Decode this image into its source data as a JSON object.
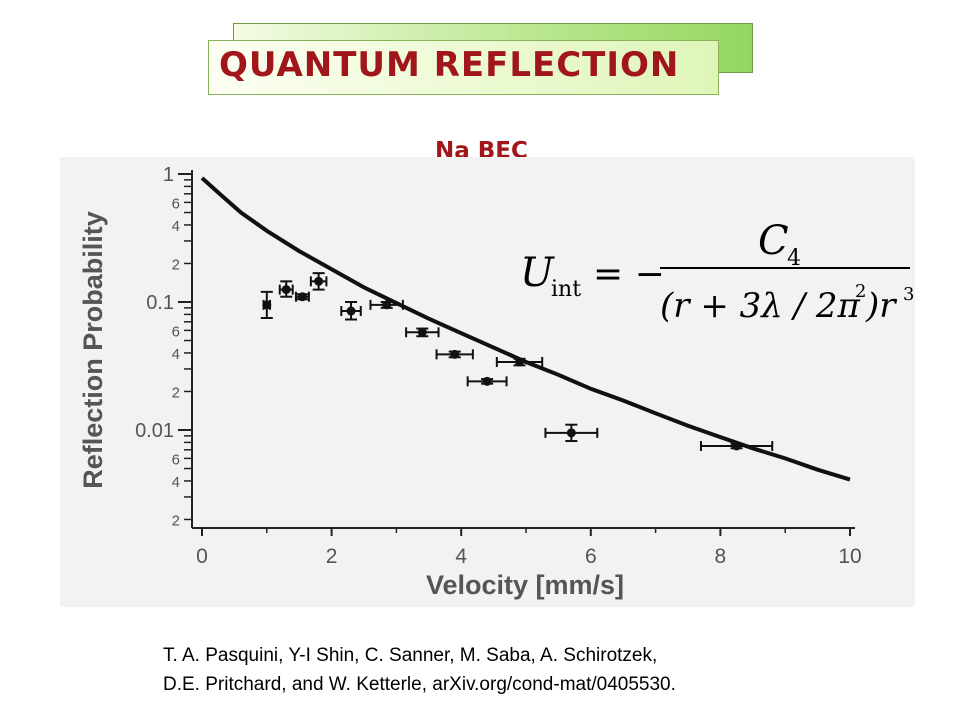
{
  "slide": {
    "title": "QUANTUM REFLECTION",
    "subtitle": "Na BEC",
    "citation_line1": "T. A. Pasquini, Y-I Shin, C. Sanner, M. Saba, A. Schirotzek,",
    "citation_line2": "D.E. Pritchard, and W. Ketterle, arXiv.org/cond-mat/0405530.",
    "colors": {
      "title": "#a0161b",
      "title_box": "#dff5b8",
      "title_shadow": "#94d760",
      "plot_bg": "#f2f2f2"
    }
  },
  "formula": {
    "lhs_symbol": "U",
    "lhs_subscript": "int",
    "equals_minus": "= −",
    "numerator_symbol": "C",
    "numerator_subscript": "4",
    "denominator_open": "(r + 3λ / 2π",
    "denominator_exp": "2",
    "denominator_close": ")r",
    "denominator_tail_exp": "3"
  },
  "chart_data": {
    "type": "scatter",
    "xlabel": "Velocity [mm/s]",
    "ylabel": "Reflection Probability",
    "xlim": [
      0,
      10
    ],
    "ylim": [
      0.0015,
      1
    ],
    "yscale": "log",
    "grid": false,
    "x_ticks": [
      0,
      2,
      4,
      6,
      8,
      10
    ],
    "y_major_ticks": [
      {
        "value": 1,
        "label": "1"
      },
      {
        "value": 0.1,
        "label": "0.1"
      },
      {
        "value": 0.01,
        "label": "0.01"
      }
    ],
    "y_minor_ticks": [
      {
        "value": 0.6,
        "label": "6"
      },
      {
        "value": 0.4,
        "label": "4"
      },
      {
        "value": 0.2,
        "label": "2"
      },
      {
        "value": 0.06,
        "label": "6"
      },
      {
        "value": 0.04,
        "label": "4"
      },
      {
        "value": 0.02,
        "label": "2"
      },
      {
        "value": 0.006,
        "label": "6"
      },
      {
        "value": 0.004,
        "label": "4"
      },
      {
        "value": 0.002,
        "label": "2"
      }
    ],
    "points": [
      {
        "x": 1.0,
        "y": 0.095,
        "xerr": 0.05,
        "yerr_lo": 0.075,
        "yerr_hi": 0.12
      },
      {
        "x": 1.3,
        "y": 0.125,
        "xerr": 0.1,
        "yerr_lo": 0.11,
        "yerr_hi": 0.145
      },
      {
        "x": 1.55,
        "y": 0.11,
        "xerr": 0.1,
        "yerr_lo": 0.105,
        "yerr_hi": 0.115
      },
      {
        "x": 1.8,
        "y": 0.145,
        "xerr": 0.12,
        "yerr_lo": 0.125,
        "yerr_hi": 0.168
      },
      {
        "x": 2.3,
        "y": 0.085,
        "xerr": 0.15,
        "yerr_lo": 0.073,
        "yerr_hi": 0.1
      },
      {
        "x": 2.85,
        "y": 0.095,
        "xerr": 0.25,
        "yerr_lo": 0.09,
        "yerr_hi": 0.1
      },
      {
        "x": 3.4,
        "y": 0.058,
        "xerr": 0.25,
        "yerr_lo": 0.054,
        "yerr_hi": 0.062
      },
      {
        "x": 3.9,
        "y": 0.039,
        "xerr": 0.28,
        "yerr_lo": 0.037,
        "yerr_hi": 0.041
      },
      {
        "x": 4.4,
        "y": 0.024,
        "xerr": 0.3,
        "yerr_lo": 0.023,
        "yerr_hi": 0.025
      },
      {
        "x": 4.9,
        "y": 0.034,
        "xerr": 0.35,
        "yerr_lo": 0.032,
        "yerr_hi": 0.036
      },
      {
        "x": 5.7,
        "y": 0.0095,
        "xerr": 0.4,
        "yerr_lo": 0.0082,
        "yerr_hi": 0.011
      },
      {
        "x": 8.25,
        "y": 0.0075,
        "xerr": 0.55,
        "yerr_lo": 0.0072,
        "yerr_hi": 0.0078
      }
    ],
    "theory_curve": {
      "x": [
        0.0,
        0.3,
        0.6,
        1.0,
        1.5,
        2.0,
        2.5,
        3.0,
        3.5,
        4.0,
        4.5,
        5.0,
        5.5,
        6.0,
        6.5,
        7.0,
        7.5,
        8.0,
        8.5,
        9.0,
        9.5,
        10.0
      ],
      "y": [
        0.93,
        0.68,
        0.5,
        0.36,
        0.25,
        0.18,
        0.13,
        0.098,
        0.074,
        0.057,
        0.044,
        0.034,
        0.027,
        0.021,
        0.017,
        0.0135,
        0.0108,
        0.0088,
        0.0072,
        0.006,
        0.0049,
        0.0041
      ]
    }
  }
}
